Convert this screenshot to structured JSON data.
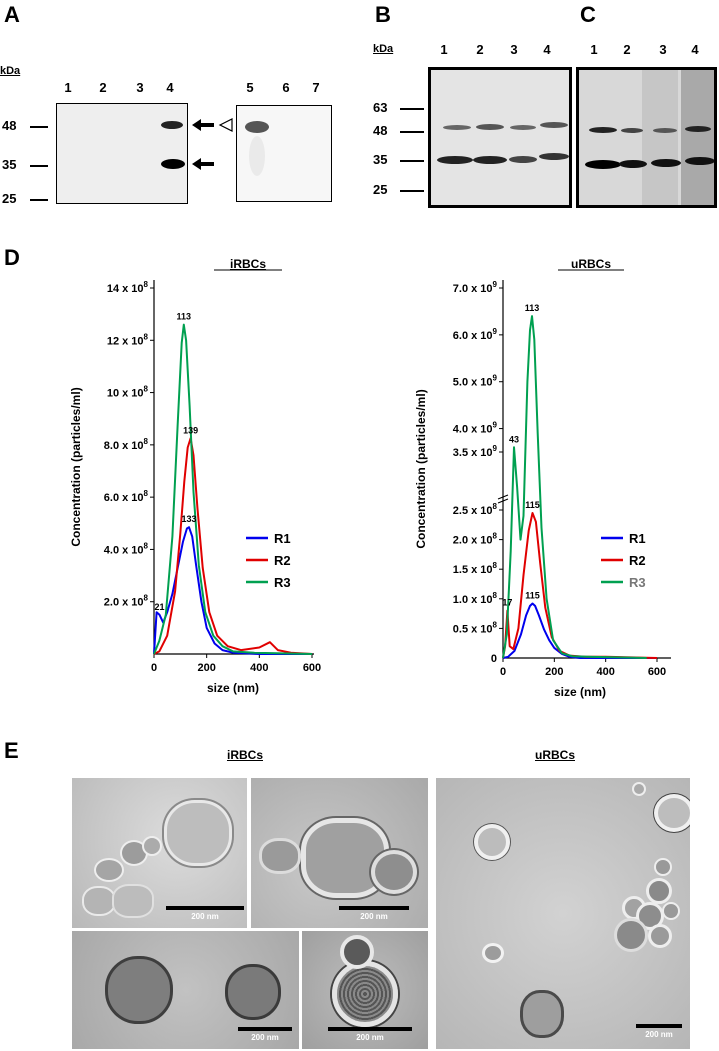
{
  "panels": {
    "A": {
      "letter": "A",
      "kda_label": "kDa",
      "lanes_left": [
        "1",
        "2",
        "3",
        "4"
      ],
      "lanes_right": [
        "5",
        "6",
        "7"
      ],
      "markers": [
        "48",
        "35",
        "25"
      ]
    },
    "B": {
      "letter": "B",
      "kda_label": "kDa",
      "lanes": [
        "1",
        "2",
        "3",
        "4"
      ],
      "markers": [
        "63",
        "48",
        "35",
        "25"
      ]
    },
    "C": {
      "letter": "C",
      "lanes": [
        "1",
        "2",
        "3",
        "4"
      ]
    },
    "D": {
      "letter": "D"
    },
    "E": {
      "letter": "E",
      "left_title": "iRBCs",
      "right_title": "uRBCs",
      "scale_label": "200 nm"
    }
  },
  "chart_data": [
    {
      "type": "line",
      "title": "iRBCs",
      "xlabel": "size (nm)",
      "ylabel": "Concentration (particles/ml)",
      "xlim": [
        0,
        600
      ],
      "ylim": [
        0,
        14
      ],
      "x_ticks": [
        "0",
        "200",
        "400",
        "600"
      ],
      "y_ticks": [
        {
          "value": 2,
          "label": "2.0 x 10",
          "exp": "8"
        },
        {
          "value": 4,
          "label": "4.0 x 10",
          "exp": "8"
        },
        {
          "value": 6,
          "label": "6.0 x 10",
          "exp": "8"
        },
        {
          "value": 8,
          "label": "8.0 x 10",
          "exp": "8"
        },
        {
          "value": 10,
          "label": "10 x 10",
          "exp": "8"
        },
        {
          "value": 12,
          "label": "12 x 10",
          "exp": "8"
        },
        {
          "value": 14,
          "label": "14 x 10",
          "exp": "8"
        }
      ],
      "legend": "right",
      "series": [
        {
          "name": "R1",
          "color": "#0000ee",
          "x": [
            0,
            10,
            21,
            35,
            50,
            70,
            90,
            110,
            125,
            133,
            145,
            160,
            180,
            200,
            230,
            260,
            300,
            400,
            600
          ],
          "y": [
            0,
            1.6,
            1.5,
            1.2,
            1.6,
            2.3,
            3.3,
            4.3,
            4.8,
            4.85,
            4.5,
            3.4,
            2.0,
            1.0,
            0.4,
            0.15,
            0.05,
            0,
            0
          ]
        },
        {
          "name": "R2",
          "color": "#e00000",
          "x": [
            0,
            20,
            50,
            80,
            100,
            115,
            128,
            139,
            150,
            165,
            185,
            210,
            240,
            280,
            330,
            400,
            440,
            470,
            520,
            600
          ],
          "y": [
            0,
            0.1,
            0.7,
            2.4,
            4.6,
            6.6,
            7.9,
            8.25,
            7.6,
            5.6,
            3.3,
            1.6,
            0.7,
            0.3,
            0.15,
            0.25,
            0.45,
            0.15,
            0.05,
            0
          ]
        },
        {
          "name": "R3",
          "color": "#00a050",
          "x": [
            0,
            20,
            45,
            70,
            90,
            105,
            113,
            122,
            135,
            150,
            170,
            195,
            225,
            260,
            300,
            380,
            600
          ],
          "y": [
            0,
            0.5,
            1.5,
            4.5,
            8.8,
            11.9,
            12.6,
            12.0,
            9.5,
            6.2,
            3.4,
            1.6,
            0.7,
            0.3,
            0.1,
            0.05,
            0
          ]
        }
      ],
      "annotations": [
        {
          "text": "113",
          "x": 113,
          "y": 12.6
        },
        {
          "text": "139",
          "x": 139,
          "y": 8.25
        },
        {
          "text": "133",
          "x": 133,
          "y": 4.85
        },
        {
          "text": "21",
          "x": 21,
          "y": 1.5
        }
      ]
    },
    {
      "type": "line",
      "title": "uRBCs",
      "xlabel": "size (nm)",
      "ylabel": "Concentration (particles/ml)",
      "xlim": [
        0,
        600
      ],
      "x_ticks": [
        "0",
        "200",
        "400",
        "600"
      ],
      "y_ticks": [
        {
          "value": 0.5,
          "label": "0.5 x 10",
          "exp": "8"
        },
        {
          "value": 1.0,
          "label": "1.0 x 10",
          "exp": "8"
        },
        {
          "value": 1.5,
          "label": "1.5 x 10",
          "exp": "8"
        },
        {
          "value": 2.0,
          "label": "2.0 x 10",
          "exp": "8"
        },
        {
          "value": 2.5,
          "label": "2.5 x 10",
          "exp": "8"
        },
        {
          "value": 3.5,
          "label": "3.5 x 10",
          "exp": "9"
        },
        {
          "value": 4.0,
          "label": "4.0 x 10",
          "exp": "9"
        },
        {
          "value": 5.0,
          "label": "5.0 x 10",
          "exp": "9"
        },
        {
          "value": 6.0,
          "label": "6.0 x 10",
          "exp": "9"
        },
        {
          "value": 7.0,
          "label": "7.0 x 10",
          "exp": "9"
        }
      ],
      "y_tick_zero": "0",
      "legend": "right",
      "series": [
        {
          "name": "R1",
          "color": "#0000ee",
          "x": [
            0,
            20,
            45,
            70,
            90,
            105,
            115,
            125,
            140,
            160,
            180,
            200,
            230,
            260,
            300,
            600
          ],
          "y": [
            0,
            0.02,
            0.12,
            0.4,
            0.72,
            0.88,
            0.92,
            0.88,
            0.72,
            0.48,
            0.3,
            0.17,
            0.07,
            0.02,
            0,
            0
          ]
        },
        {
          "name": "R2",
          "color": "#e00000",
          "x": [
            0,
            8,
            17,
            26,
            40,
            60,
            80,
            100,
            115,
            128,
            145,
            165,
            190,
            220,
            260,
            320,
            400,
            500,
            600
          ],
          "y": [
            0,
            0.2,
            0.8,
            0.2,
            0.15,
            0.5,
            1.4,
            2.15,
            2.45,
            2.3,
            1.6,
            0.85,
            0.35,
            0.12,
            0.04,
            0.02,
            0.02,
            0.01,
            0
          ]
        },
        {
          "name": "R3",
          "color": "#00a050",
          "x": [
            0,
            15,
            30,
            43,
            55,
            68,
            80,
            95,
            105,
            113,
            122,
            135,
            150,
            170,
            195,
            230,
            270,
            330,
            450,
            560
          ],
          "y": [
            0,
            0.4,
            1.8,
            3.6,
            2.9,
            2.0,
            2.4,
            5.0,
            6.1,
            6.4,
            5.9,
            3.9,
            2.2,
            1.0,
            0.3,
            0.08,
            0.03,
            0.02,
            0.01,
            0
          ]
        }
      ],
      "annotations": [
        {
          "text": "113",
          "x": 113,
          "y": 6.4
        },
        {
          "text": "43",
          "x": 43,
          "y": 3.6
        },
        {
          "text": "115",
          "x": 115,
          "y": 2.45
        },
        {
          "text": "115",
          "x": 115,
          "y": 0.92
        },
        {
          "text": "17",
          "x": 17,
          "y": 0.8
        }
      ]
    }
  ]
}
